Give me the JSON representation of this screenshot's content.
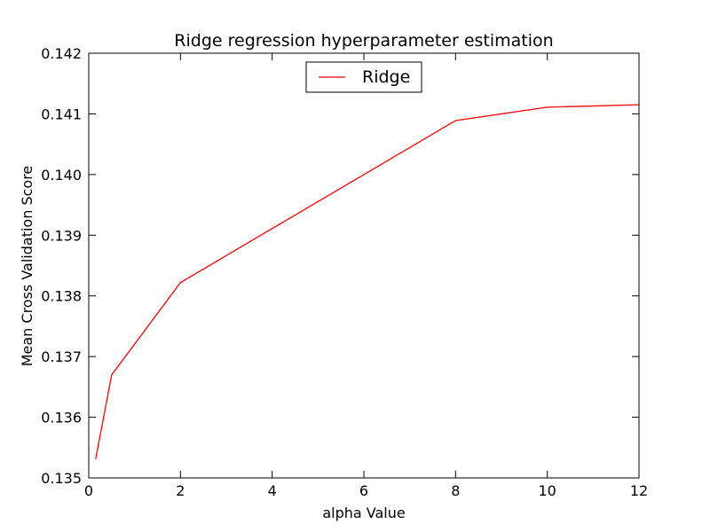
{
  "chart_data": {
    "type": "line",
    "title": "Ridge regression hyperparameter estimation",
    "xlabel": "alpha Value",
    "ylabel": "Mean Cross Validation Score",
    "xlim": [
      0,
      12
    ],
    "ylim": [
      0.135,
      0.142
    ],
    "xticks": [
      0,
      2,
      4,
      6,
      8,
      10,
      12
    ],
    "xtick_labels": [
      "0",
      "2",
      "4",
      "6",
      "8",
      "10",
      "12"
    ],
    "yticks": [
      0.135,
      0.136,
      0.137,
      0.138,
      0.139,
      0.14,
      0.141,
      0.142
    ],
    "ytick_labels": [
      "0.135",
      "0.136",
      "0.137",
      "0.138",
      "0.139",
      "0.140",
      "0.141",
      "0.142"
    ],
    "grid": false,
    "legend_position": "top-center",
    "series": [
      {
        "name": "Ridge",
        "color": "#ff0000",
        "x": [
          0.15,
          0.5,
          2,
          8,
          10,
          12
        ],
        "y": [
          0.13531,
          0.1367,
          0.13822,
          0.14089,
          0.14111,
          0.14115
        ]
      }
    ]
  }
}
